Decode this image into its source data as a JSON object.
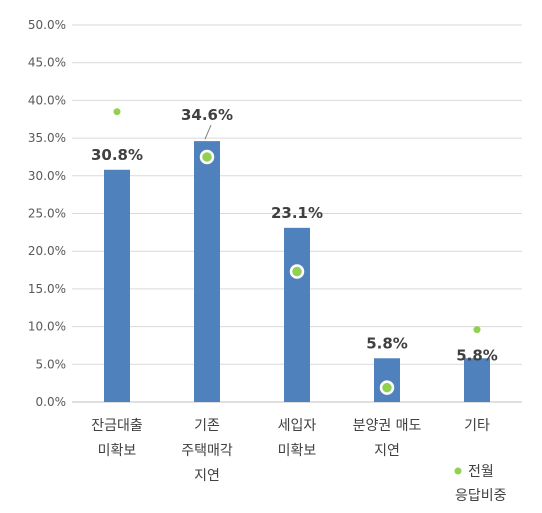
{
  "chart_data": {
    "type": "bar",
    "categories": [
      [
        "잔금대출",
        "미확보"
      ],
      [
        "기존",
        "주택매각",
        "지연"
      ],
      [
        "세입자",
        "미확보"
      ],
      [
        "분양권 매도",
        "지연"
      ],
      [
        "기타"
      ]
    ],
    "series": [
      {
        "type": "bar",
        "values": [
          30.8,
          34.6,
          23.1,
          5.8,
          5.8
        ],
        "data_labels": [
          "30.8%",
          "34.6%",
          "23.1%",
          "5.8%",
          "5.8%"
        ],
        "color": "#4F81BD"
      },
      {
        "type": "scatter",
        "name": [
          "전월",
          "응답비중"
        ],
        "values": [
          38.5,
          32.5,
          17.3,
          1.9,
          9.6
        ],
        "color": "#92D050"
      }
    ],
    "y_ticks": [
      "0.0%",
      "5.0%",
      "10.0%",
      "15.0%",
      "20.0%",
      "25.0%",
      "30.0%",
      "35.0%",
      "40.0%",
      "45.0%",
      "50.0%"
    ],
    "ylim": [
      0,
      50
    ],
    "grid": true,
    "legend_position": "bottom-right"
  }
}
